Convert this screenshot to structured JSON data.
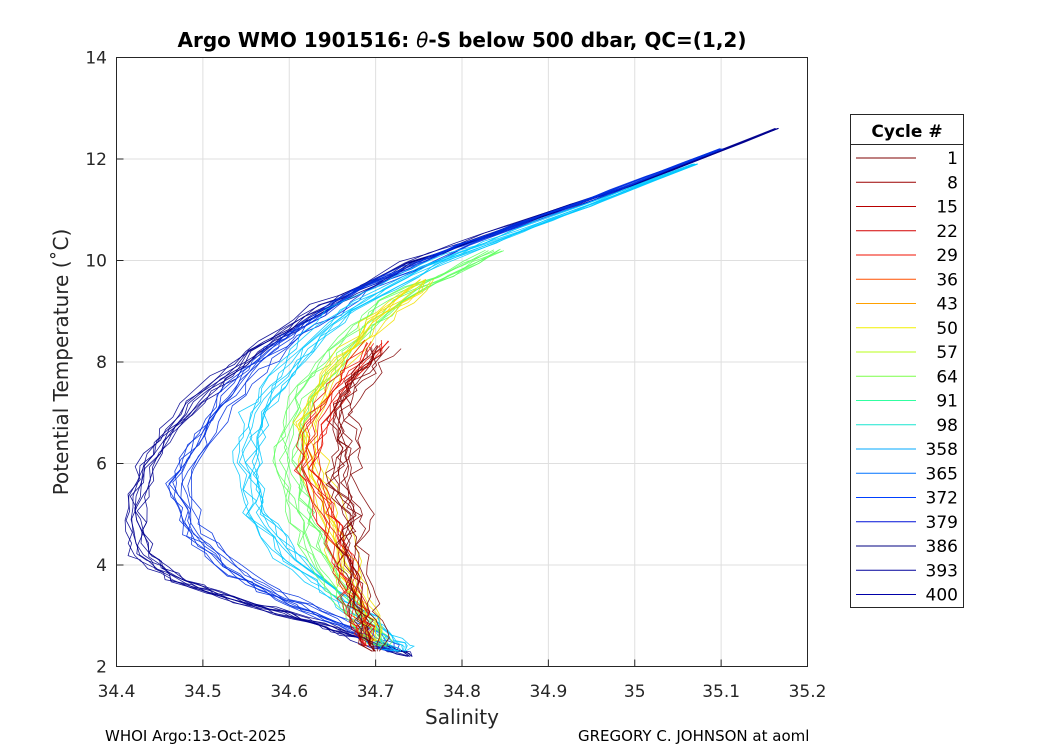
{
  "chart_data": {
    "type": "line",
    "title_prefix": "Argo WMO 1901516: ",
    "title_theta": "θ",
    "title_suffix": "-S below 500 dbar,  QC=(1,2)",
    "xlabel": "Salinity",
    "ylabel": "Potential Temperature (˚C)",
    "xlim": [
      34.4,
      35.2
    ],
    "ylim": [
      2,
      14
    ],
    "xticks": [
      "34.4",
      "34.5",
      "34.6",
      "34.7",
      "34.8",
      "34.9",
      "35",
      "35.1",
      "35.2"
    ],
    "yticks": [
      "2",
      "4",
      "6",
      "8",
      "10",
      "12",
      "14"
    ],
    "grid": true,
    "legend": {
      "title": "Cycle #",
      "placement": "outside-right",
      "entries": [
        {
          "label": "1",
          "color": "#7f0000"
        },
        {
          "label": "8",
          "color": "#9b0000"
        },
        {
          "label": "15",
          "color": "#b80000"
        },
        {
          "label": "22",
          "color": "#d40000"
        },
        {
          "label": "29",
          "color": "#f11000"
        },
        {
          "label": "36",
          "color": "#ff5000"
        },
        {
          "label": "43",
          "color": "#ffa000"
        },
        {
          "label": "50",
          "color": "#f2f000"
        },
        {
          "label": "57",
          "color": "#b8ff1a"
        },
        {
          "label": "64",
          "color": "#7dff4a"
        },
        {
          "label": "91",
          "color": "#30ffa0"
        },
        {
          "label": "98",
          "color": "#18e6d0"
        },
        {
          "label": "358",
          "color": "#00a8ff"
        },
        {
          "label": "365",
          "color": "#0072ff"
        },
        {
          "label": "372",
          "color": "#0040ff"
        },
        {
          "label": "379",
          "color": "#0010d8"
        },
        {
          "label": "386",
          "color": "#000080"
        },
        {
          "label": "393",
          "color": "#00009b"
        },
        {
          "label": "400",
          "color": "#0000a8"
        }
      ]
    },
    "series_shapes": [
      {
        "name": "blue-envelope",
        "color": "#00008f",
        "s": [
          35.165,
          35.0,
          34.86,
          34.74,
          34.64,
          34.56,
          34.49,
          34.44,
          34.42,
          34.43,
          34.47,
          34.55,
          34.63,
          34.7,
          34.74
        ],
        "t": [
          12.6,
          11.5,
          10.7,
          9.95,
          9.1,
          8.2,
          7.2,
          6.2,
          5.1,
          4.2,
          3.7,
          3.25,
          2.85,
          2.45,
          2.2
        ]
      },
      {
        "name": "blue-inner",
        "color": "#0030e0",
        "s": [
          35.1,
          34.93,
          34.8,
          34.68,
          34.6,
          34.54,
          34.5,
          34.47,
          34.49,
          34.54,
          34.61,
          34.68,
          34.72
        ],
        "t": [
          12.2,
          11.1,
          10.3,
          9.4,
          8.5,
          7.6,
          6.6,
          5.6,
          4.6,
          3.8,
          3.2,
          2.7,
          2.3
        ]
      },
      {
        "name": "cyan-group",
        "color": "#00c8ff",
        "s": [
          35.07,
          34.9,
          34.76,
          34.66,
          34.6,
          34.56,
          34.55,
          34.56,
          34.6,
          34.66,
          34.71,
          34.73
        ],
        "t": [
          11.9,
          10.8,
          9.9,
          9.0,
          8.0,
          7.0,
          6.0,
          5.0,
          4.1,
          3.3,
          2.6,
          2.3
        ]
      },
      {
        "name": "green-group",
        "color": "#60ff60",
        "s": [
          34.84,
          34.72,
          34.66,
          34.62,
          34.6,
          34.61,
          34.63,
          34.66,
          34.69,
          34.71
        ],
        "t": [
          10.2,
          9.2,
          8.2,
          7.3,
          6.3,
          5.3,
          4.4,
          3.5,
          2.8,
          2.4
        ]
      },
      {
        "name": "yellow-group",
        "color": "#f2e000",
        "s": [
          34.76,
          34.7,
          34.65,
          34.62,
          34.63,
          34.65,
          34.67,
          34.69,
          34.7
        ],
        "t": [
          9.6,
          8.8,
          7.8,
          6.8,
          5.8,
          4.8,
          3.8,
          3.0,
          2.5
        ]
      },
      {
        "name": "red-group",
        "color": "#e81000",
        "s": [
          34.7,
          34.66,
          34.63,
          34.62,
          34.64,
          34.66,
          34.67,
          34.68,
          34.69
        ],
        "t": [
          8.4,
          7.6,
          6.8,
          5.9,
          5.0,
          4.2,
          3.5,
          2.9,
          2.4
        ]
      },
      {
        "name": "darkred-group",
        "color": "#7f0000",
        "s": [
          34.71,
          34.68,
          34.66,
          34.67,
          34.66,
          34.68,
          34.67,
          34.68,
          34.69,
          34.7
        ],
        "t": [
          8.3,
          7.6,
          7.0,
          6.3,
          5.6,
          5.0,
          4.4,
          3.6,
          2.9,
          2.3
        ]
      }
    ]
  },
  "footer": {
    "left": "WHOI Argo:13-Oct-2025",
    "right": "GREGORY C. JOHNSON at aoml"
  }
}
